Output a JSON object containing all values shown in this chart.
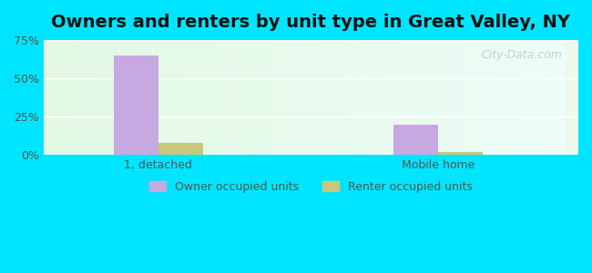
{
  "title": "Owners and renters by unit type in Great Valley, NY",
  "categories": [
    "1, detached",
    "Mobile home"
  ],
  "owner_values": [
    65.0,
    20.0
  ],
  "renter_values": [
    8.0,
    2.0
  ],
  "owner_color": "#c8a8e0",
  "renter_color": "#c8c87a",
  "ylim": [
    0,
    75
  ],
  "yticks": [
    0,
    25,
    50,
    75
  ],
  "yticklabels": [
    "0%",
    "25%",
    "50%",
    "75%"
  ],
  "bar_width": 0.35,
  "background_outer": "#00e5ff",
  "background_inner_left": "#e8f5e0",
  "background_inner_right": "#f0faf8",
  "title_fontsize": 14,
  "legend_label_owner": "Owner occupied units",
  "legend_label_renter": "Renter occupied units",
  "watermark": "City-Data.com"
}
